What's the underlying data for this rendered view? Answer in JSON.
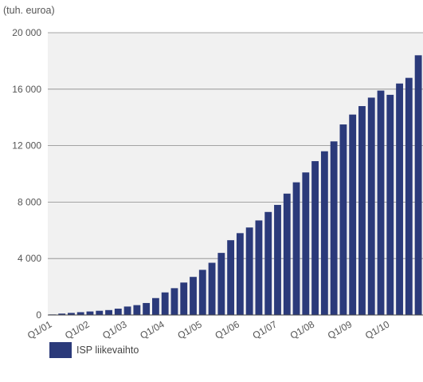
{
  "chart_data": {
    "type": "bar",
    "unit_label": "(tuh. euroa)",
    "y_ticks": [
      0,
      4000,
      8000,
      12000,
      16000,
      20000
    ],
    "y_tick_labels": [
      "0",
      "4 000",
      "8 000",
      "12 000",
      "16 000",
      "20 000"
    ],
    "ylim": [
      0,
      20000
    ],
    "x_tick_labels": [
      "Q1/01",
      "Q1/02",
      "Q1/03",
      "Q1/04",
      "Q1/05",
      "Q1/06",
      "Q1/07",
      "Q1/08",
      "Q1/09",
      "Q1/10"
    ],
    "categories": [
      "Q1/01",
      "Q2/01",
      "Q3/01",
      "Q4/01",
      "Q1/02",
      "Q2/02",
      "Q3/02",
      "Q4/02",
      "Q1/03",
      "Q2/03",
      "Q3/03",
      "Q4/03",
      "Q1/04",
      "Q2/04",
      "Q3/04",
      "Q4/04",
      "Q1/05",
      "Q2/05",
      "Q3/05",
      "Q4/05",
      "Q1/06",
      "Q2/06",
      "Q3/06",
      "Q4/06",
      "Q1/07",
      "Q2/07",
      "Q3/07",
      "Q4/07",
      "Q1/08",
      "Q2/08",
      "Q3/08",
      "Q4/08",
      "Q1/09",
      "Q2/09",
      "Q3/09",
      "Q4/09",
      "Q1/10",
      "Q2/10",
      "Q3/10",
      "Q4/10"
    ],
    "series": [
      {
        "name": "ISP liikevaihto",
        "color": "#2b3a7a",
        "values": [
          40,
          100,
          150,
          200,
          250,
          300,
          350,
          450,
          600,
          700,
          850,
          1200,
          1600,
          1900,
          2300,
          2700,
          3200,
          3700,
          4400,
          5300,
          5800,
          6200,
          6700,
          7300,
          7800,
          8600,
          9400,
          10100,
          10900,
          11600,
          12300,
          13500,
          14200,
          14800,
          15400,
          15900,
          15600,
          16400,
          16800,
          18400
        ]
      }
    ],
    "grid": true,
    "legend_position": "bottom-left"
  }
}
